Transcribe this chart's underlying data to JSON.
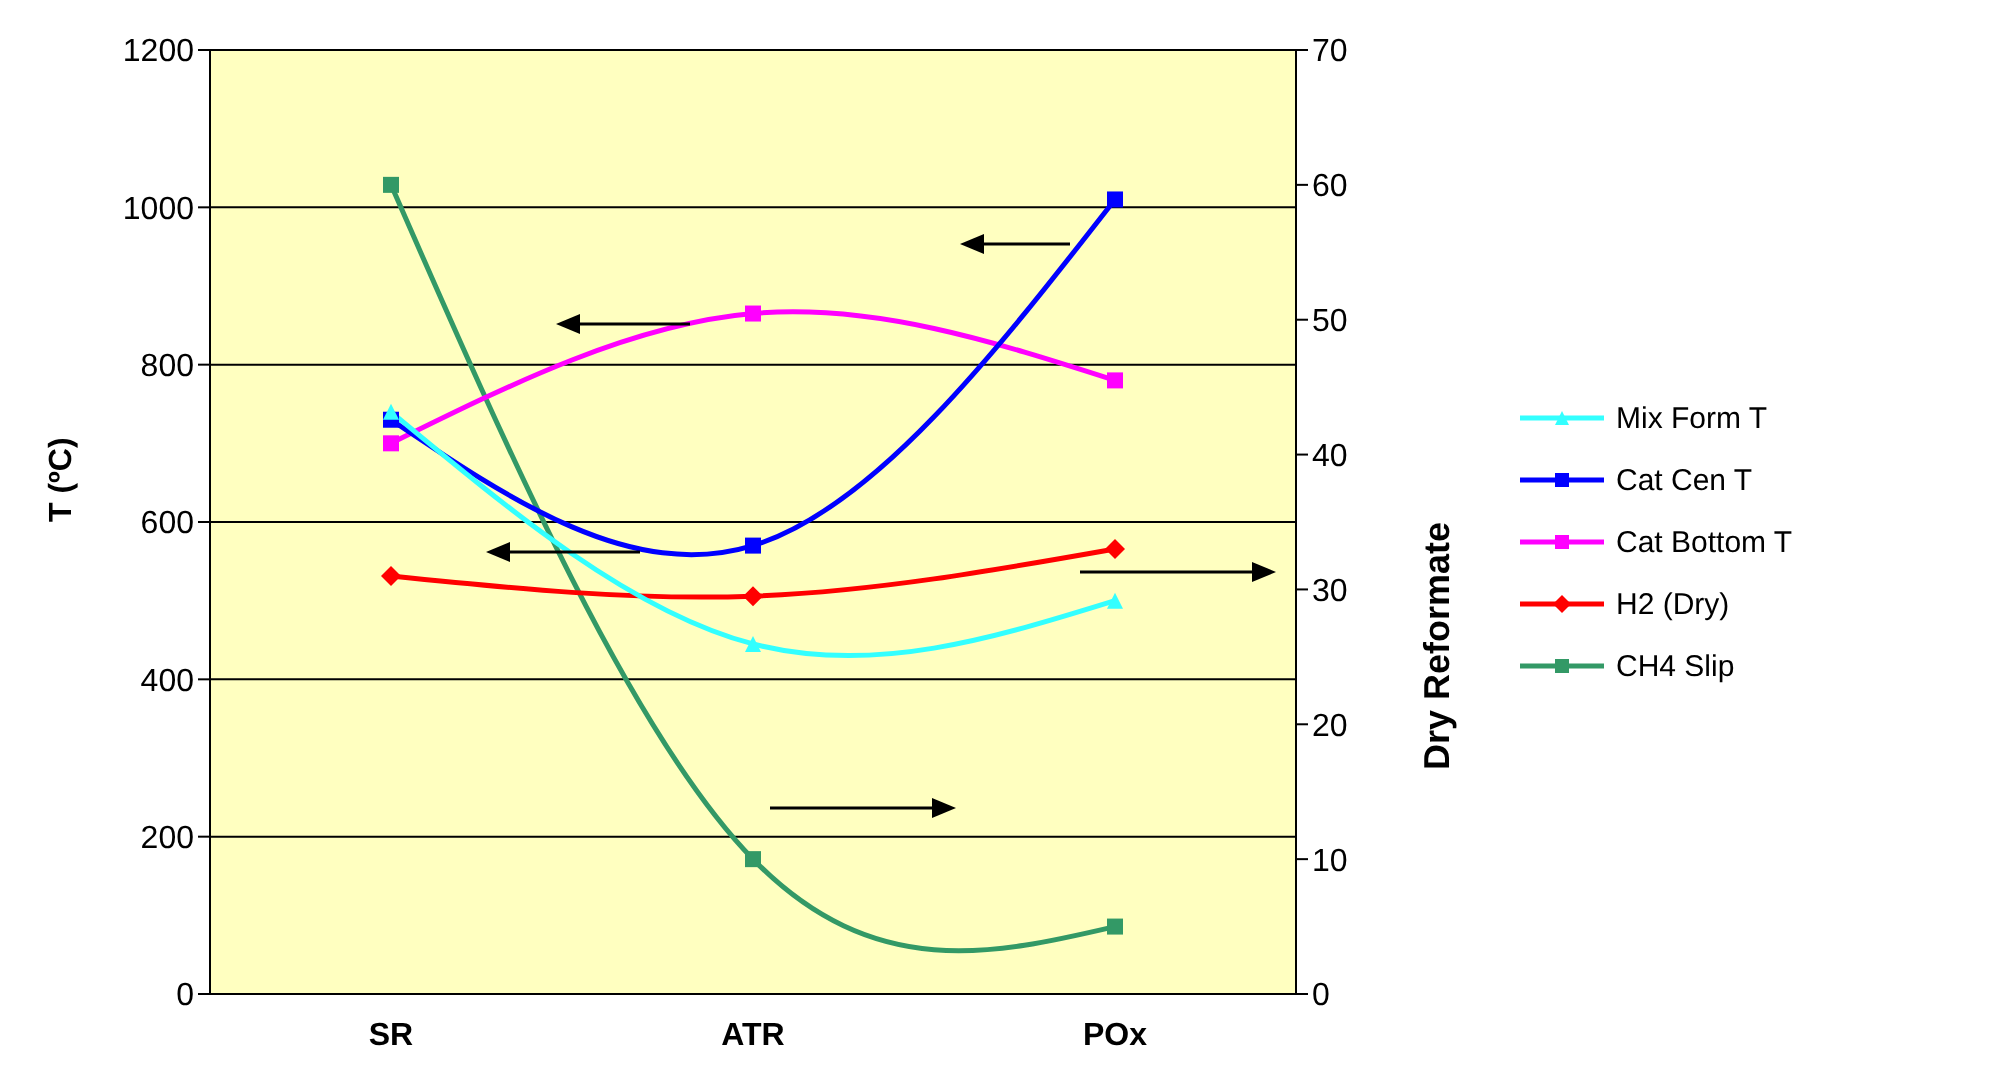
{
  "chart_data": {
    "type": "line",
    "categories": [
      "SR",
      "ATR",
      "POx"
    ],
    "ylabel": "T (ºC)",
    "y2label": "Dry Reformate",
    "ylim": [
      0,
      1200
    ],
    "yticks": [
      0,
      200,
      400,
      600,
      800,
      1000,
      1200
    ],
    "y2lim": [
      0,
      70
    ],
    "y2ticks": [
      0,
      10,
      20,
      30,
      40,
      50,
      60,
      70
    ],
    "grid": "y",
    "legend": "right",
    "line_style": "solid",
    "series": [
      {
        "name": "Mix Form T",
        "color": "#33ffff",
        "marker": "triangle",
        "values": [
          740,
          445,
          500
        ]
      },
      {
        "name": "Cat Cen T",
        "color": "#0000ff",
        "marker": "square",
        "values": [
          730,
          570,
          1010
        ]
      },
      {
        "name": "Cat Bottom T",
        "color": "#ff00ff",
        "marker": "square",
        "values": [
          700,
          865,
          780
        ]
      },
      {
        "name": "H2 (Dry)",
        "color": "#ff0000",
        "marker": "diamond",
        "axis": "y2",
        "values": [
          31,
          29.5,
          33
        ]
      },
      {
        "name": "CH4 Slip",
        "color": "#339966",
        "marker": "square",
        "axis": "y2",
        "values": [
          60,
          10,
          5
        ]
      }
    ]
  }
}
